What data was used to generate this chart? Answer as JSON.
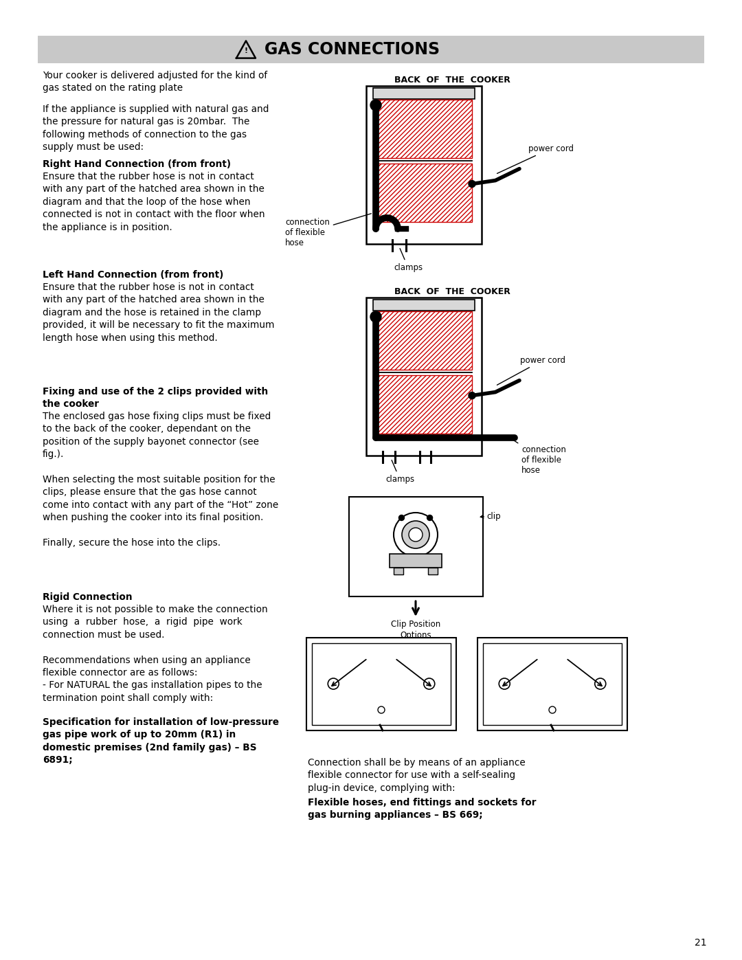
{
  "page_num": "21",
  "title": "GAS CONNECTIONS",
  "bg_color": "#ffffff",
  "header_bg": "#c8c8c8",
  "header_text_color": "#000000",
  "body_text_color": "#000000",
  "diagram_line_color": "#000000",
  "hatch_color": "#cc0000",
  "para1": "Your cooker is delivered adjusted for the kind of\ngas stated on the rating plate",
  "para2": "If the appliance is supplied with natural gas and\nthe pressure for natural gas is 20mbar.  The\nfollowing methods of connection to the gas\nsupply must be used:",
  "rh_heading": "Right Hand Connection (from front)",
  "rh_body": "Ensure that the rubber hose is not in contact\nwith any part of the hatched area shown in the\ndiagram and that the loop of the hose when\nconnected is not in contact with the floor when\nthe appliance is in position.",
  "lh_heading": "Left Hand Connection (from front)",
  "lh_body": "Ensure that the rubber hose is not in contact\nwith any part of the hatched area shown in the\ndiagram and the hose is retained in the clamp\nprovided, it will be necessary to fit the maximum\nlength hose when using this method.",
  "clips_heading1": "Fixing and use of the 2 clips provided with",
  "clips_heading2": "the cooker",
  "clips_body": "The enclosed gas hose fixing clips must be fixed\nto the back of the cooker, dependant on the\nposition of the supply bayonet connector (see\nfig.).\n\nWhen selecting the most suitable position for the\nclips, please ensure that the gas hose cannot\ncome into contact with any part of the “Hot” zone\nwhen pushing the cooker into its final position.\n\nFinally, secure the hose into the clips.",
  "rigid_heading": "Rigid Connection",
  "rigid_body1": "Where it is not possible to make the connection\nusing  a  rubber  hose,  a  rigid  pipe  work\nconnection must be used.\n\nRecommendations when using an appliance\nflexible connector are as follows:\n- For NATURAL the gas installation pipes to the\ntermination point shall comply with:",
  "rigid_body2": "Specification for installation of low-pressure\ngas pipe work of up to 20mm (R1) in\ndomestic premises (2nd family gas) – BS\n6891;",
  "right_col1": "Connection shall be by means of an appliance\nflexible connector for use with a self-sealing\nplug-in device, complying with:",
  "right_col2": "Flexible hoses, end fittings and sockets for\ngas burning appliances – BS 669;",
  "diag1_label": "BACK  OF  THE  COOKER",
  "diag2_label": "BACK  OF  THE  COOKER",
  "clip_pos_label": "Clip Position\nOptions"
}
